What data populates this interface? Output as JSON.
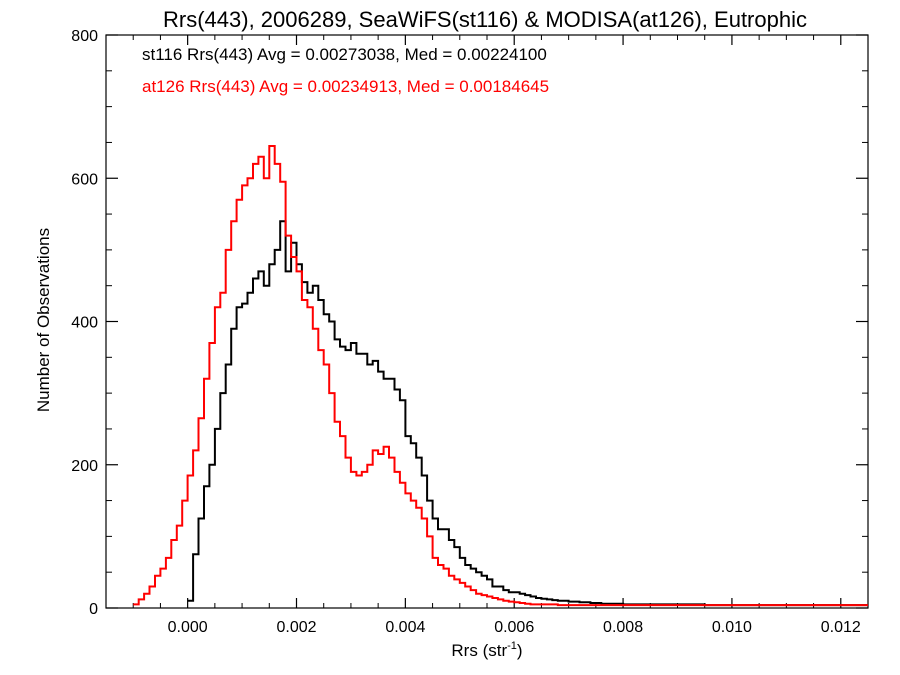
{
  "chart_data": {
    "type": "line",
    "title": "Rrs(443), 2006289, SeaWiFS(st116) & MODISA(at126), Eutrophic",
    "xlabel": "Rrs (str",
    "xlabel_sup": "-1",
    "xlabel_end": ")",
    "ylabel": "Number of Observations",
    "xlim": [
      -0.0015,
      0.0125
    ],
    "ylim": [
      0,
      800
    ],
    "xticks": [
      0.0,
      0.002,
      0.004,
      0.006,
      0.008,
      0.01,
      0.012
    ],
    "xtick_labels": [
      "0.000",
      "0.002",
      "0.004",
      "0.006",
      "0.008",
      "0.010",
      "0.012"
    ],
    "yticks": [
      0,
      200,
      400,
      600,
      800
    ],
    "ytick_labels": [
      "0",
      "200",
      "400",
      "600",
      "800"
    ],
    "grid": false,
    "legend_position": "top-left",
    "series": [
      {
        "name": "st116 Rrs(443) Avg = 0.00273038, Med = 0.00224100",
        "color": "#000000",
        "x": [
          0.0,
          0.0001,
          0.0002,
          0.0003,
          0.0004,
          0.0005,
          0.0006,
          0.0007,
          0.0008,
          0.0009,
          0.001,
          0.0011,
          0.0012,
          0.0013,
          0.0014,
          0.0015,
          0.0016,
          0.0017,
          0.0018,
          0.0019,
          0.002,
          0.0021,
          0.0022,
          0.0023,
          0.0024,
          0.0025,
          0.0026,
          0.0027,
          0.0028,
          0.0029,
          0.003,
          0.0031,
          0.0032,
          0.0033,
          0.0034,
          0.0035,
          0.0036,
          0.0037,
          0.0038,
          0.0039,
          0.004,
          0.0041,
          0.0042,
          0.0043,
          0.0044,
          0.0045,
          0.0046,
          0.0047,
          0.0048,
          0.0049,
          0.005,
          0.0051,
          0.0052,
          0.0053,
          0.0054,
          0.0055,
          0.0056,
          0.0057,
          0.0058,
          0.0059,
          0.006,
          0.0061,
          0.0062,
          0.0063,
          0.0064,
          0.0065,
          0.0066,
          0.0067,
          0.0068,
          0.007,
          0.0072,
          0.0074,
          0.0076,
          0.0078,
          0.008,
          0.0085,
          0.009,
          0.0095,
          0.01,
          0.0105,
          0.011,
          0.0115,
          0.012,
          0.0125
        ],
        "y": [
          10,
          75,
          125,
          170,
          200,
          250,
          300,
          340,
          390,
          420,
          425,
          440,
          460,
          470,
          450,
          480,
          500,
          540,
          470,
          510,
          480,
          455,
          440,
          450,
          430,
          410,
          400,
          375,
          365,
          360,
          370,
          355,
          355,
          340,
          345,
          330,
          320,
          320,
          305,
          290,
          240,
          230,
          210,
          185,
          150,
          125,
          110,
          110,
          95,
          85,
          70,
          60,
          55,
          50,
          45,
          40,
          30,
          30,
          25,
          22,
          22,
          20,
          18,
          16,
          14,
          13,
          12,
          11,
          10,
          9,
          8,
          7,
          6,
          6,
          5,
          5,
          5,
          4,
          4,
          4,
          4,
          4,
          4,
          4
        ]
      },
      {
        "name": "at126 Rrs(443) Avg = 0.00234913, Med = 0.00184645",
        "color": "#ff0000",
        "x": [
          -0.001,
          -0.0009,
          -0.0008,
          -0.0007,
          -0.0006,
          -0.0005,
          -0.0004,
          -0.0003,
          -0.0002,
          -0.0001,
          0.0,
          0.0001,
          0.0002,
          0.0003,
          0.0004,
          0.0005,
          0.0006,
          0.0007,
          0.0008,
          0.0009,
          0.001,
          0.0011,
          0.0012,
          0.0013,
          0.0014,
          0.0015,
          0.0016,
          0.0017,
          0.0018,
          0.0019,
          0.002,
          0.0021,
          0.0022,
          0.0023,
          0.0024,
          0.0025,
          0.0026,
          0.0027,
          0.0028,
          0.0029,
          0.003,
          0.0031,
          0.0032,
          0.0033,
          0.0034,
          0.0035,
          0.0036,
          0.0037,
          0.0038,
          0.0039,
          0.004,
          0.0041,
          0.0042,
          0.0043,
          0.0044,
          0.0045,
          0.0046,
          0.0047,
          0.0048,
          0.0049,
          0.005,
          0.0051,
          0.0052,
          0.0053,
          0.0054,
          0.0055,
          0.0056,
          0.0057,
          0.0058,
          0.0059,
          0.006,
          0.0061,
          0.0062,
          0.0063,
          0.0064,
          0.0066,
          0.0068,
          0.007,
          0.0075,
          0.008,
          0.0085,
          0.009,
          0.0095,
          0.01,
          0.0105,
          0.011,
          0.0115,
          0.012,
          0.0125
        ],
        "y": [
          5,
          12,
          20,
          30,
          45,
          55,
          70,
          95,
          115,
          150,
          185,
          220,
          265,
          320,
          370,
          420,
          440,
          500,
          540,
          570,
          590,
          600,
          620,
          630,
          600,
          645,
          620,
          595,
          520,
          490,
          470,
          430,
          420,
          390,
          360,
          340,
          300,
          260,
          240,
          210,
          190,
          185,
          190,
          200,
          220,
          215,
          225,
          210,
          190,
          175,
          160,
          150,
          140,
          125,
          100,
          70,
          60,
          55,
          45,
          40,
          35,
          30,
          25,
          20,
          18,
          16,
          14,
          12,
          10,
          9,
          8,
          7,
          6,
          5,
          5,
          5,
          4,
          4,
          4,
          4,
          4,
          4,
          4,
          4,
          4,
          4,
          4,
          4,
          4
        ]
      }
    ]
  }
}
